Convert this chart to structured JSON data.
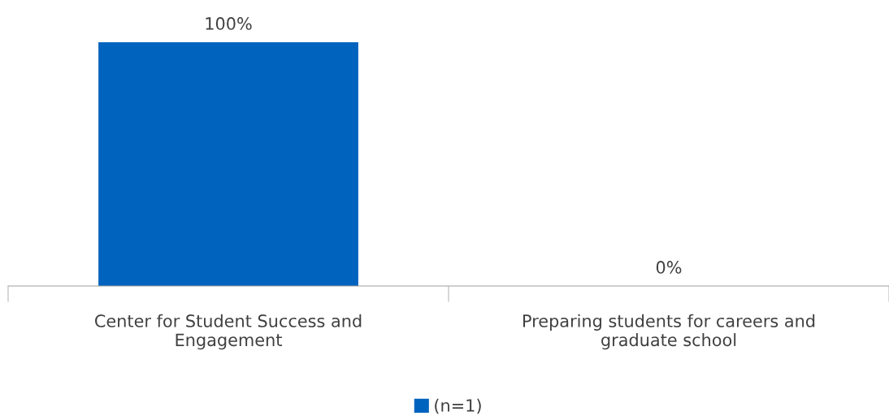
{
  "chart_data": {
    "type": "bar",
    "categories": [
      "Center for Student Success and\nEngagement",
      "Preparing students for careers and\ngraduate school"
    ],
    "series": [
      {
        "name": "(n=1)",
        "color": "#0063be",
        "values": [
          100,
          0
        ],
        "value_labels": [
          "100%",
          "0%"
        ]
      }
    ],
    "ylim": [
      0,
      100
    ],
    "legend": "bottom",
    "grid": false,
    "tick_labels": "x"
  }
}
